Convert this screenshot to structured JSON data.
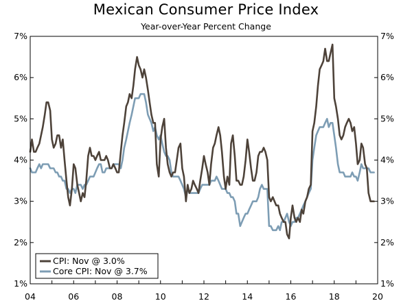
{
  "chart_data": {
    "type": "line",
    "title": "Mexican Consumer Price Index",
    "subtitle": "Year-over-Year Percent Change",
    "xlabel": "",
    "ylabel": "",
    "xlim": [
      2004,
      2020
    ],
    "ylim": [
      1,
      7
    ],
    "x_ticks": [
      2004,
      2006,
      2008,
      2010,
      2012,
      2014,
      2016,
      2018,
      2020
    ],
    "x_tick_labels": [
      "04",
      "06",
      "08",
      "10",
      "12",
      "14",
      "16",
      "18",
      "20"
    ],
    "y_ticks": [
      1,
      2,
      3,
      4,
      5,
      6,
      7
    ],
    "y_tick_labels": [
      "1%",
      "2%",
      "3%",
      "4%",
      "5%",
      "6%",
      "7%"
    ],
    "legend_position": "bottom-left",
    "series": [
      {
        "name": "CPI: Nov @ 3.0%",
        "color": "#4d4239",
        "x": [
          2004.0,
          2004.08,
          2004.17,
          2004.25,
          2004.33,
          2004.42,
          2004.5,
          2004.58,
          2004.67,
          2004.75,
          2004.83,
          2004.92,
          2005.0,
          2005.08,
          2005.17,
          2005.25,
          2005.33,
          2005.42,
          2005.5,
          2005.58,
          2005.67,
          2005.75,
          2005.83,
          2005.92,
          2006.0,
          2006.08,
          2006.17,
          2006.25,
          2006.33,
          2006.42,
          2006.5,
          2006.58,
          2006.67,
          2006.75,
          2006.83,
          2006.92,
          2007.0,
          2007.08,
          2007.17,
          2007.25,
          2007.33,
          2007.42,
          2007.5,
          2007.58,
          2007.67,
          2007.75,
          2007.83,
          2007.92,
          2008.0,
          2008.08,
          2008.17,
          2008.25,
          2008.33,
          2008.42,
          2008.5,
          2008.58,
          2008.67,
          2008.75,
          2008.83,
          2008.92,
          2009.0,
          2009.08,
          2009.17,
          2009.25,
          2009.33,
          2009.42,
          2009.5,
          2009.58,
          2009.67,
          2009.75,
          2009.83,
          2009.92,
          2010.0,
          2010.08,
          2010.17,
          2010.25,
          2010.33,
          2010.42,
          2010.5,
          2010.58,
          2010.67,
          2010.75,
          2010.83,
          2010.92,
          2011.0,
          2011.08,
          2011.17,
          2011.25,
          2011.33,
          2011.42,
          2011.5,
          2011.58,
          2011.67,
          2011.75,
          2011.83,
          2011.92,
          2012.0,
          2012.08,
          2012.17,
          2012.25,
          2012.33,
          2012.42,
          2012.5,
          2012.58,
          2012.67,
          2012.75,
          2012.83,
          2012.92,
          2013.0,
          2013.08,
          2013.17,
          2013.25,
          2013.33,
          2013.42,
          2013.5,
          2013.58,
          2013.67,
          2013.75,
          2013.83,
          2013.92,
          2014.0,
          2014.08,
          2014.17,
          2014.25,
          2014.33,
          2014.42,
          2014.5,
          2014.58,
          2014.67,
          2014.75,
          2014.83,
          2014.92,
          2015.0,
          2015.08,
          2015.17,
          2015.25,
          2015.33,
          2015.42,
          2015.5,
          2015.58,
          2015.67,
          2015.75,
          2015.83,
          2015.92,
          2016.0,
          2016.08,
          2016.17,
          2016.25,
          2016.33,
          2016.42,
          2016.5,
          2016.58,
          2016.67,
          2016.75,
          2016.83,
          2016.92,
          2017.0,
          2017.08,
          2017.17,
          2017.25,
          2017.33,
          2017.42,
          2017.5,
          2017.58,
          2017.67,
          2017.75,
          2017.83,
          2017.92,
          2018.0,
          2018.08,
          2018.17,
          2018.25,
          2018.33,
          2018.42,
          2018.5,
          2018.58,
          2018.67,
          2018.75,
          2018.83,
          2018.92,
          2019.0,
          2019.08,
          2019.17,
          2019.25,
          2019.33,
          2019.42,
          2019.5,
          2019.58,
          2019.67,
          2019.75,
          2019.83
        ],
        "values": [
          4.2,
          4.5,
          4.2,
          4.2,
          4.3,
          4.4,
          4.6,
          4.8,
          5.1,
          5.4,
          5.4,
          5.2,
          4.5,
          4.3,
          4.4,
          4.6,
          4.6,
          4.3,
          4.5,
          4.0,
          3.5,
          3.1,
          2.9,
          3.3,
          3.9,
          3.8,
          3.4,
          3.2,
          3.0,
          3.2,
          3.1,
          3.5,
          4.1,
          4.3,
          4.1,
          4.1,
          4.0,
          4.1,
          4.2,
          4.0,
          4.0,
          4.0,
          4.1,
          4.0,
          3.8,
          3.8,
          3.9,
          3.8,
          3.7,
          3.7,
          4.2,
          4.6,
          4.9,
          5.3,
          5.4,
          5.6,
          5.5,
          5.8,
          6.2,
          6.5,
          6.3,
          6.2,
          6.0,
          6.2,
          6.0,
          5.7,
          5.4,
          5.1,
          4.9,
          4.9,
          3.9,
          3.6,
          4.5,
          4.8,
          5.0,
          4.3,
          3.9,
          3.7,
          3.6,
          3.7,
          3.7,
          4.0,
          4.3,
          4.4,
          3.8,
          3.6,
          3.0,
          3.4,
          3.2,
          3.3,
          3.5,
          3.4,
          3.3,
          3.2,
          3.5,
          3.8,
          4.1,
          3.9,
          3.7,
          3.4,
          3.9,
          4.3,
          4.4,
          4.6,
          4.8,
          4.6,
          4.2,
          3.6,
          3.3,
          3.6,
          3.4,
          4.4,
          4.6,
          4.1,
          3.5,
          3.5,
          3.4,
          3.4,
          3.6,
          4.0,
          4.5,
          4.2,
          3.8,
          3.5,
          3.5,
          3.7,
          4.1,
          4.2,
          4.2,
          4.3,
          4.2,
          4.0,
          3.1,
          3.0,
          3.1,
          3.0,
          2.9,
          2.9,
          2.7,
          2.6,
          2.5,
          2.5,
          2.2,
          2.1,
          2.6,
          2.9,
          2.6,
          2.5,
          2.6,
          2.5,
          2.8,
          2.7,
          3.0,
          3.1,
          3.3,
          3.4,
          4.7,
          4.9,
          5.3,
          5.8,
          6.2,
          6.3,
          6.4,
          6.7,
          6.4,
          6.4,
          6.6,
          6.8,
          5.5,
          5.3,
          5.0,
          4.6,
          4.5,
          4.6,
          4.8,
          4.9,
          5.0,
          4.9,
          4.7,
          4.8,
          4.4,
          3.9,
          4.0,
          4.4,
          4.3,
          3.9,
          3.8,
          3.2,
          3.0,
          3.0,
          3.0
        ]
      },
      {
        "name": "Core CPI: Nov @ 3.7%",
        "color": "#7d9db4",
        "x": [
          2004.0,
          2004.08,
          2004.17,
          2004.25,
          2004.33,
          2004.42,
          2004.5,
          2004.58,
          2004.67,
          2004.75,
          2004.83,
          2004.92,
          2005.0,
          2005.08,
          2005.17,
          2005.25,
          2005.33,
          2005.42,
          2005.5,
          2005.58,
          2005.67,
          2005.75,
          2005.83,
          2005.92,
          2006.0,
          2006.08,
          2006.17,
          2006.25,
          2006.33,
          2006.42,
          2006.5,
          2006.58,
          2006.67,
          2006.75,
          2006.83,
          2006.92,
          2007.0,
          2007.08,
          2007.17,
          2007.25,
          2007.33,
          2007.42,
          2007.5,
          2007.58,
          2007.67,
          2007.75,
          2007.83,
          2007.92,
          2008.0,
          2008.08,
          2008.17,
          2008.25,
          2008.33,
          2008.42,
          2008.5,
          2008.58,
          2008.67,
          2008.75,
          2008.83,
          2008.92,
          2009.0,
          2009.08,
          2009.17,
          2009.25,
          2009.33,
          2009.42,
          2009.5,
          2009.58,
          2009.67,
          2009.75,
          2009.83,
          2009.92,
          2010.0,
          2010.08,
          2010.17,
          2010.25,
          2010.33,
          2010.42,
          2010.5,
          2010.58,
          2010.67,
          2010.75,
          2010.83,
          2010.92,
          2011.0,
          2011.08,
          2011.17,
          2011.25,
          2011.33,
          2011.42,
          2011.5,
          2011.58,
          2011.67,
          2011.75,
          2011.83,
          2011.92,
          2012.0,
          2012.08,
          2012.17,
          2012.25,
          2012.33,
          2012.42,
          2012.5,
          2012.58,
          2012.67,
          2012.75,
          2012.83,
          2012.92,
          2013.0,
          2013.08,
          2013.17,
          2013.25,
          2013.33,
          2013.42,
          2013.5,
          2013.58,
          2013.67,
          2013.75,
          2013.83,
          2013.92,
          2014.0,
          2014.08,
          2014.17,
          2014.25,
          2014.33,
          2014.42,
          2014.5,
          2014.58,
          2014.67,
          2014.75,
          2014.83,
          2014.92,
          2015.0,
          2015.08,
          2015.17,
          2015.25,
          2015.33,
          2015.42,
          2015.5,
          2015.58,
          2015.67,
          2015.75,
          2015.83,
          2015.92,
          2016.0,
          2016.08,
          2016.17,
          2016.25,
          2016.33,
          2016.42,
          2016.5,
          2016.58,
          2016.67,
          2016.75,
          2016.83,
          2016.92,
          2017.0,
          2017.08,
          2017.17,
          2017.25,
          2017.33,
          2017.42,
          2017.5,
          2017.58,
          2017.67,
          2017.75,
          2017.83,
          2017.92,
          2018.0,
          2018.08,
          2018.17,
          2018.25,
          2018.33,
          2018.42,
          2018.5,
          2018.58,
          2018.67,
          2018.75,
          2018.83,
          2018.92,
          2019.0,
          2019.08,
          2019.17,
          2019.25,
          2019.33,
          2019.42,
          2019.5,
          2019.58,
          2019.67,
          2019.75,
          2019.83
        ],
        "values": [
          3.8,
          3.7,
          3.7,
          3.7,
          3.8,
          3.9,
          3.8,
          3.9,
          3.9,
          3.9,
          3.9,
          3.8,
          3.8,
          3.8,
          3.7,
          3.7,
          3.6,
          3.6,
          3.5,
          3.5,
          3.3,
          3.3,
          3.2,
          3.3,
          3.3,
          3.2,
          3.4,
          3.4,
          3.4,
          3.3,
          3.4,
          3.4,
          3.5,
          3.6,
          3.6,
          3.6,
          3.7,
          3.8,
          3.9,
          3.9,
          3.7,
          3.7,
          3.8,
          3.8,
          3.8,
          3.8,
          3.9,
          3.9,
          3.9,
          3.9,
          3.8,
          4.0,
          4.3,
          4.5,
          4.7,
          4.9,
          5.1,
          5.3,
          5.5,
          5.5,
          5.5,
          5.6,
          5.6,
          5.6,
          5.4,
          5.1,
          5.0,
          4.9,
          4.7,
          4.8,
          4.6,
          4.5,
          4.6,
          4.4,
          4.2,
          4.1,
          4.1,
          4.0,
          3.7,
          3.6,
          3.6,
          3.6,
          3.6,
          3.5,
          3.4,
          3.3,
          3.1,
          3.3,
          3.2,
          3.2,
          3.2,
          3.2,
          3.2,
          3.2,
          3.3,
          3.4,
          3.4,
          3.4,
          3.4,
          3.4,
          3.5,
          3.5,
          3.5,
          3.6,
          3.5,
          3.4,
          3.3,
          3.3,
          3.3,
          3.2,
          3.2,
          3.1,
          3.1,
          3.0,
          2.7,
          2.7,
          2.4,
          2.5,
          2.6,
          2.7,
          2.7,
          2.8,
          2.9,
          3.0,
          3.0,
          3.0,
          3.1,
          3.3,
          3.4,
          3.3,
          3.3,
          3.3,
          2.4,
          2.4,
          2.3,
          2.3,
          2.3,
          2.4,
          2.3,
          2.5,
          2.5,
          2.6,
          2.7,
          2.5,
          2.4,
          2.5,
          2.5,
          2.6,
          2.6,
          2.7,
          2.8,
          2.9,
          3.0,
          3.1,
          3.2,
          3.3,
          4.0,
          4.3,
          4.6,
          4.7,
          4.8,
          4.8,
          4.8,
          4.9,
          5.0,
          4.8,
          4.9,
          4.9,
          4.6,
          4.3,
          3.9,
          3.7,
          3.7,
          3.7,
          3.6,
          3.6,
          3.6,
          3.6,
          3.7,
          3.6,
          3.6,
          3.5,
          3.7,
          3.9,
          3.8,
          3.8,
          3.8,
          3.8,
          3.7,
          3.7,
          3.7
        ]
      }
    ]
  },
  "legend": {
    "cpi_label": "CPI: Nov @ 3.0%",
    "core_label": "Core CPI: Nov @ 3.7%"
  }
}
